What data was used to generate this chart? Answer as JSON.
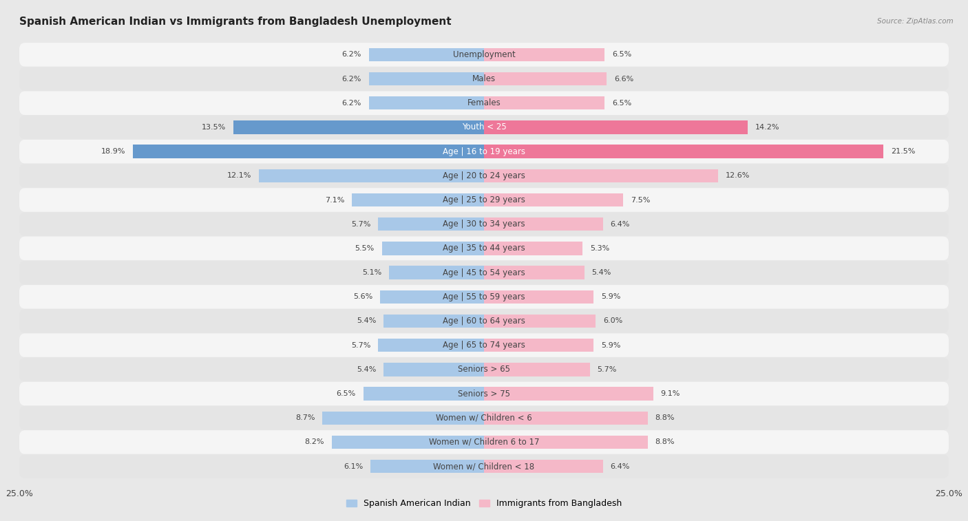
{
  "title": "Spanish American Indian vs Immigrants from Bangladesh Unemployment",
  "source": "Source: ZipAtlas.com",
  "categories": [
    "Unemployment",
    "Males",
    "Females",
    "Youth < 25",
    "Age | 16 to 19 years",
    "Age | 20 to 24 years",
    "Age | 25 to 29 years",
    "Age | 30 to 34 years",
    "Age | 35 to 44 years",
    "Age | 45 to 54 years",
    "Age | 55 to 59 years",
    "Age | 60 to 64 years",
    "Age | 65 to 74 years",
    "Seniors > 65",
    "Seniors > 75",
    "Women w/ Children < 6",
    "Women w/ Children 6 to 17",
    "Women w/ Children < 18"
  ],
  "left_values": [
    6.2,
    6.2,
    6.2,
    13.5,
    18.9,
    12.1,
    7.1,
    5.7,
    5.5,
    5.1,
    5.6,
    5.4,
    5.7,
    5.4,
    6.5,
    8.7,
    8.2,
    6.1
  ],
  "right_values": [
    6.5,
    6.6,
    6.5,
    14.2,
    21.5,
    12.6,
    7.5,
    6.4,
    5.3,
    5.4,
    5.9,
    6.0,
    5.9,
    5.7,
    9.1,
    8.8,
    8.8,
    6.4
  ],
  "left_color_normal": "#a8c8e8",
  "right_color_normal": "#f5b8c8",
  "left_color_highlight": "#6699cc",
  "right_color_highlight": "#ee7799",
  "highlight_rows": [
    3,
    4
  ],
  "bg_color": "#e8e8e8",
  "row_bg_white": "#f5f5f5",
  "row_bg_gray": "#e5e5e5",
  "max_val": 25.0,
  "legend_left": "Spanish American Indian",
  "legend_right": "Immigrants from Bangladesh",
  "title_fontsize": 11,
  "label_fontsize": 8.5,
  "value_fontsize": 8.0
}
